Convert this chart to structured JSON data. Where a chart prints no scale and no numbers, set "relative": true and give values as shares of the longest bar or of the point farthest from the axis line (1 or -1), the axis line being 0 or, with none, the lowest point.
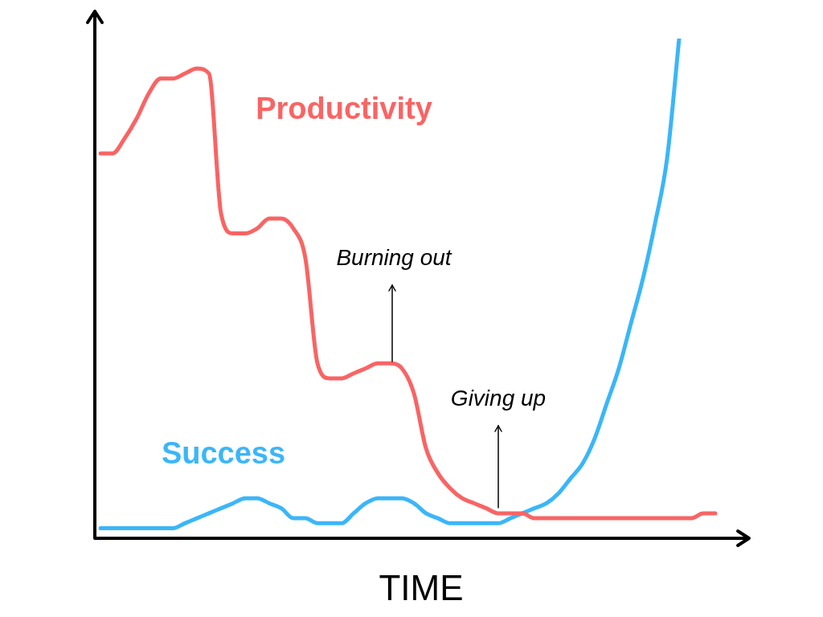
{
  "chart_data": {
    "type": "line",
    "relative": true,
    "xlabel": "TIME",
    "legend": false,
    "grid": false,
    "marker": "none",
    "line_style": "solid",
    "categories": [
      null,
      null,
      null,
      null,
      null,
      null,
      null,
      null,
      null,
      null,
      null,
      null,
      null,
      null,
      null,
      null,
      null,
      null,
      null,
      null,
      null,
      null,
      null,
      null,
      null,
      null,
      null,
      null,
      null,
      null,
      null,
      null,
      null,
      null,
      null,
      null,
      null,
      null,
      null,
      null,
      null,
      null,
      null,
      null,
      null,
      null,
      null,
      null,
      null,
      null,
      null,
      null
    ],
    "series": [
      {
        "name": "Productivity",
        "color": "#f96464",
        "values": [
          0.77,
          0.77,
          0.8,
          0.84,
          0.89,
          0.92,
          0.92,
          0.93,
          0.94,
          0.93,
          0.65,
          0.61,
          0.61,
          0.62,
          0.64,
          0.64,
          0.62,
          0.56,
          0.35,
          0.32,
          0.32,
          0.33,
          0.34,
          0.35,
          0.35,
          0.34,
          0.29,
          0.18,
          0.13,
          0.1,
          0.08,
          0.07,
          0.06,
          0.05,
          0.05,
          0.05,
          0.04,
          0.04,
          0.04,
          0.04,
          0.04,
          0.04,
          0.04,
          0.04,
          0.04,
          0.04,
          0.04,
          0.04,
          0.04,
          0.04,
          0.05,
          0.05
        ]
      },
      {
        "name": "Success",
        "color": "#3bb6f8",
        "values": [
          0.02,
          0.02,
          0.02,
          0.02,
          0.02,
          0.02,
          0.02,
          0.03,
          0.04,
          0.05,
          0.06,
          0.07,
          0.08,
          0.08,
          0.07,
          0.06,
          0.04,
          0.04,
          0.03,
          0.03,
          0.03,
          0.05,
          0.07,
          0.08,
          0.08,
          0.08,
          0.07,
          0.05,
          0.04,
          0.03,
          0.03,
          0.03,
          0.03,
          0.03,
          0.04,
          0.05,
          0.06,
          0.07,
          0.09,
          0.12,
          0.15,
          0.2,
          0.27,
          0.34,
          0.43,
          0.52,
          0.63,
          0.76,
          1,
          null,
          null,
          null
        ]
      }
    ],
    "annotations": [
      "Burning out",
      "Giving up"
    ]
  }
}
